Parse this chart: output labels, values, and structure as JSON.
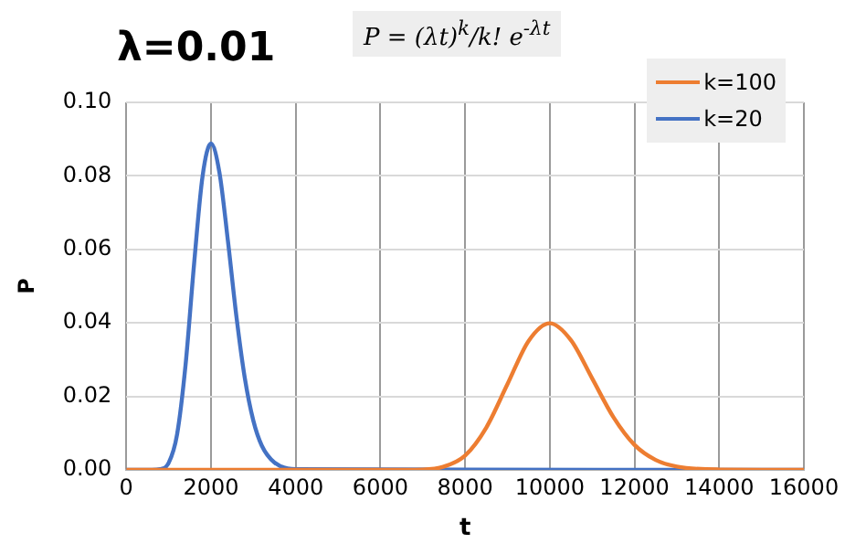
{
  "chart_data": {
    "type": "line",
    "title": "λ=0.01",
    "annotations": [
      "P = (λt)$^{k}$/k! e$^{-λt}$"
    ],
    "xlabel": "t",
    "ylabel": "P",
    "xlim": [
      0,
      16000
    ],
    "xticks": [
      0,
      2000,
      4000,
      6000,
      8000,
      10000,
      12000,
      14000,
      16000
    ],
    "ylim": [
      0,
      0.1
    ],
    "yticks": [
      {
        "value": 0,
        "label": "0.00"
      },
      {
        "value": 0.02,
        "label": "0.02"
      },
      {
        "value": 0.04,
        "label": "0.04"
      },
      {
        "value": 0.06,
        "label": "0.06"
      },
      {
        "value": 0.08,
        "label": "0.08"
      },
      {
        "value": 0.1,
        "label": "0.10"
      }
    ],
    "grid": true,
    "legend": "top right",
    "marker": "none",
    "line_style": "solid",
    "series": [
      {
        "name": "k=100",
        "color": "#ed7d31",
        "x": [
          0,
          6000,
          7000,
          7500,
          8000,
          8500,
          9000,
          9500,
          10000,
          10500,
          11000,
          11500,
          12000,
          12500,
          13000,
          14000,
          16000
        ],
        "values": [
          0,
          0,
          0.0001,
          0.0009,
          0.0039,
          0.0115,
          0.0233,
          0.0351,
          0.0399,
          0.0353,
          0.0249,
          0.0144,
          0.0068,
          0.0027,
          0.0009,
          0.0001,
          0
        ]
      },
      {
        "name": "k=20",
        "color": "#4472c4",
        "x": [
          0,
          600,
          800,
          1000,
          1200,
          1400,
          1600,
          1800,
          2000,
          2200,
          2400,
          2600,
          2800,
          3000,
          3200,
          3500,
          4000,
          16000
        ],
        "values": [
          0,
          0,
          0.0002,
          0.0019,
          0.0097,
          0.0286,
          0.0559,
          0.0798,
          0.0888,
          0.0809,
          0.0623,
          0.0418,
          0.0249,
          0.0134,
          0.0066,
          0.002,
          0.0002,
          0
        ]
      }
    ]
  }
}
